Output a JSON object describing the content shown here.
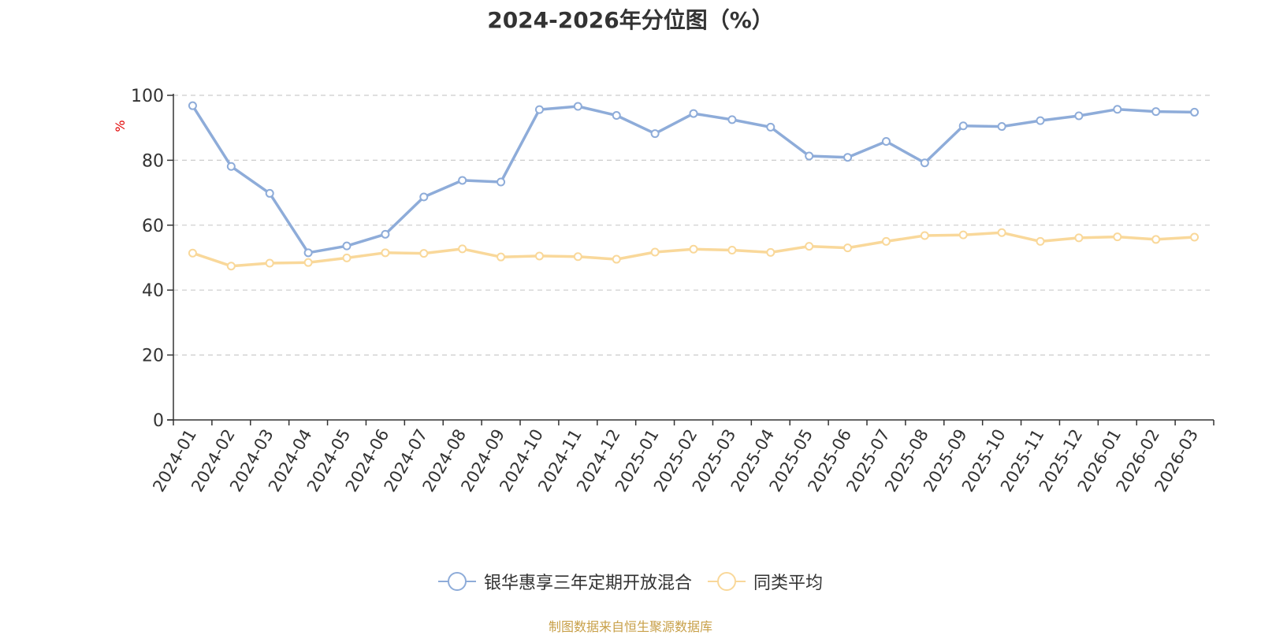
{
  "chart_data": {
    "type": "line",
    "title": "2024-2026年分位图（%）",
    "ylabel": "%",
    "xlabel": "",
    "ylim": [
      0,
      100
    ],
    "yticks": [
      0,
      20,
      40,
      60,
      80,
      100
    ],
    "grid": true,
    "legend_position": "bottom",
    "categories": [
      "2024-01",
      "2024-02",
      "2024-03",
      "2024-04",
      "2024-05",
      "2024-06",
      "2024-07",
      "2024-08",
      "2024-09",
      "2024-10",
      "2024-11",
      "2024-12",
      "2025-01",
      "2025-02",
      "2025-03",
      "2025-04",
      "2025-05",
      "2025-06",
      "2025-07",
      "2025-08",
      "2025-09",
      "2025-10",
      "2025-11",
      "2025-12",
      "2026-01",
      "2026-02",
      "2026-03"
    ],
    "series": [
      {
        "name": "银华惠享三年定期开放混合",
        "color": "#8eacd9",
        "values": [
          96.8,
          78.1,
          69.8,
          51.5,
          53.6,
          57.2,
          68.7,
          73.8,
          73.3,
          95.6,
          96.6,
          93.8,
          88.2,
          94.4,
          92.5,
          90.2,
          81.3,
          80.9,
          85.8,
          79.2,
          90.6,
          90.4,
          92.2,
          93.7,
          95.7,
          95.0,
          94.8
        ]
      },
      {
        "name": "同类平均",
        "color": "#f9d89a",
        "values": [
          51.4,
          47.4,
          48.3,
          48.5,
          49.9,
          51.5,
          51.3,
          52.7,
          50.2,
          50.5,
          50.3,
          49.5,
          51.7,
          52.6,
          52.3,
          51.6,
          53.5,
          53.0,
          55.0,
          56.8,
          57.0,
          57.7,
          55.0,
          56.1,
          56.4,
          55.6,
          56.3
        ]
      }
    ]
  },
  "source_text": "制图数据来自恒生聚源数据库"
}
